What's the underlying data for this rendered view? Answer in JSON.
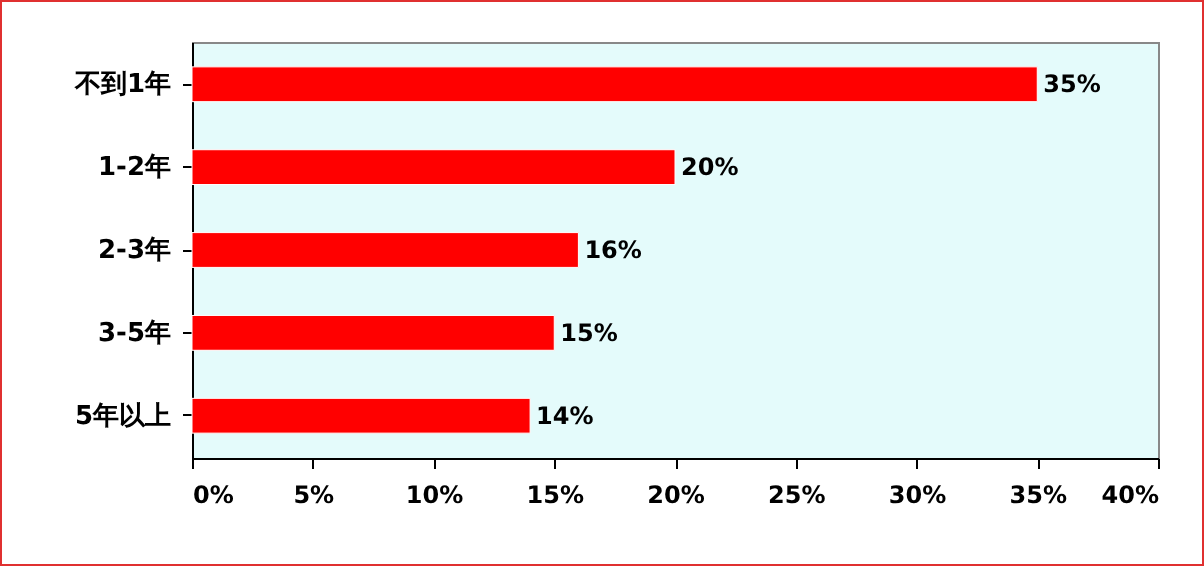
{
  "chart_data": {
    "type": "bar",
    "orientation": "horizontal",
    "categories": [
      "不到1年",
      "1-2年",
      "2-3年",
      "3-5年",
      "5年以上"
    ],
    "values": [
      35,
      20,
      16,
      15,
      14
    ],
    "value_labels": [
      "35%",
      "20%",
      "16%",
      "15%",
      "14%"
    ],
    "color": "#ff0000",
    "xlim": [
      0,
      40
    ],
    "xticks": [
      {
        "value": 0,
        "label": "0%"
      },
      {
        "value": 5,
        "label": "5%"
      },
      {
        "value": 10,
        "label": "10%"
      },
      {
        "value": 15,
        "label": "15%"
      },
      {
        "value": 20,
        "label": "20%"
      },
      {
        "value": 25,
        "label": "25%"
      },
      {
        "value": 30,
        "label": "30%"
      },
      {
        "value": 35,
        "label": "35%"
      },
      {
        "value": 40,
        "label": "40%"
      }
    ],
    "grid": false
  }
}
